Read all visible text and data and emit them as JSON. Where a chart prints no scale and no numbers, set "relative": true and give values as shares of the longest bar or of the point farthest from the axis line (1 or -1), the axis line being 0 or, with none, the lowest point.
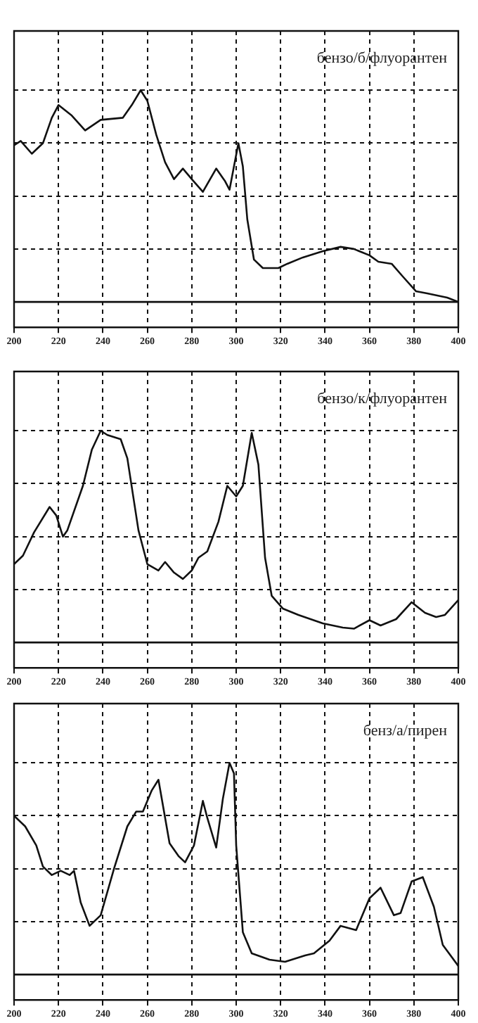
{
  "chart_data": [
    {
      "type": "line",
      "title": "бензо/б/флуорантен",
      "relative": true,
      "grid": true,
      "legend": false,
      "marker": "none",
      "line_style": "solid",
      "xlim": [
        200,
        400
      ],
      "xticks": [
        200,
        220,
        240,
        260,
        280,
        300,
        320,
        340,
        360,
        380,
        400
      ],
      "series": [
        {
          "color": "#111111",
          "x": [
            200,
            203,
            208,
            213,
            217,
            220,
            226,
            232,
            239,
            249,
            253,
            257,
            260,
            264,
            268,
            272,
            276,
            280,
            285,
            291,
            295,
            297,
            299,
            301,
            303,
            305,
            308,
            312,
            319,
            323,
            330,
            339,
            347,
            353,
            360,
            364,
            370,
            375,
            381,
            386,
            395,
            400
          ],
          "values": [
            0.74,
            0.76,
            0.7,
            0.75,
            0.87,
            0.93,
            0.88,
            0.81,
            0.86,
            0.87,
            0.93,
            1.0,
            0.95,
            0.79,
            0.66,
            0.58,
            0.63,
            0.58,
            0.52,
            0.63,
            0.57,
            0.53,
            0.64,
            0.75,
            0.64,
            0.39,
            0.2,
            0.16,
            0.16,
            0.18,
            0.21,
            0.24,
            0.26,
            0.25,
            0.22,
            0.19,
            0.18,
            0.12,
            0.05,
            0.04,
            0.02,
            0.0
          ]
        }
      ]
    },
    {
      "type": "line",
      "title": "бензо/к/флуорантен",
      "relative": true,
      "grid": true,
      "legend": false,
      "marker": "none",
      "line_style": "solid",
      "xlim": [
        200,
        400
      ],
      "xticks": [
        200,
        220,
        240,
        260,
        280,
        300,
        320,
        340,
        360,
        380,
        400
      ],
      "series": [
        {
          "color": "#111111",
          "x": [
            200,
            204,
            209,
            216,
            219,
            222,
            224,
            231,
            235,
            239,
            242,
            248,
            251,
            256,
            260,
            265,
            268,
            272,
            276,
            280,
            283,
            287,
            292,
            296,
            300,
            303,
            307,
            310,
            313,
            316,
            321,
            328,
            339,
            348,
            353,
            360,
            365,
            372,
            379,
            385,
            390,
            394,
            400
          ],
          "values": [
            0.37,
            0.41,
            0.52,
            0.64,
            0.6,
            0.5,
            0.53,
            0.74,
            0.91,
            1.0,
            0.98,
            0.96,
            0.87,
            0.53,
            0.37,
            0.34,
            0.38,
            0.33,
            0.3,
            0.34,
            0.4,
            0.43,
            0.57,
            0.74,
            0.69,
            0.74,
            0.99,
            0.84,
            0.4,
            0.22,
            0.16,
            0.13,
            0.09,
            0.07,
            0.065,
            0.105,
            0.08,
            0.11,
            0.19,
            0.14,
            0.12,
            0.13,
            0.2
          ]
        }
      ]
    },
    {
      "type": "line",
      "title": "бенз/а/пирен",
      "relative": true,
      "grid": true,
      "legend": false,
      "marker": "none",
      "line_style": "solid",
      "xlim": [
        200,
        400
      ],
      "xticks": [
        200,
        220,
        240,
        260,
        280,
        300,
        320,
        340,
        360,
        380,
        400
      ],
      "series": [
        {
          "color": "#111111",
          "x": [
            200,
            205,
            210,
            213,
            217,
            221,
            225,
            227,
            230,
            234,
            239,
            245,
            251,
            255,
            258,
            262,
            265,
            270,
            274,
            277,
            281,
            285,
            287,
            291,
            294,
            297,
            299,
            300,
            303,
            307,
            315,
            322,
            331,
            335,
            342,
            347,
            354,
            360,
            365,
            371,
            374,
            379,
            384,
            389,
            393,
            400
          ],
          "values": [
            0.75,
            0.7,
            0.61,
            0.51,
            0.47,
            0.49,
            0.47,
            0.49,
            0.34,
            0.23,
            0.28,
            0.5,
            0.7,
            0.77,
            0.77,
            0.87,
            0.92,
            0.62,
            0.56,
            0.53,
            0.61,
            0.82,
            0.74,
            0.6,
            0.83,
            1.0,
            0.95,
            0.61,
            0.2,
            0.1,
            0.07,
            0.06,
            0.09,
            0.1,
            0.16,
            0.23,
            0.21,
            0.36,
            0.41,
            0.28,
            0.29,
            0.44,
            0.46,
            0.32,
            0.14,
            0.04
          ]
        }
      ]
    }
  ]
}
